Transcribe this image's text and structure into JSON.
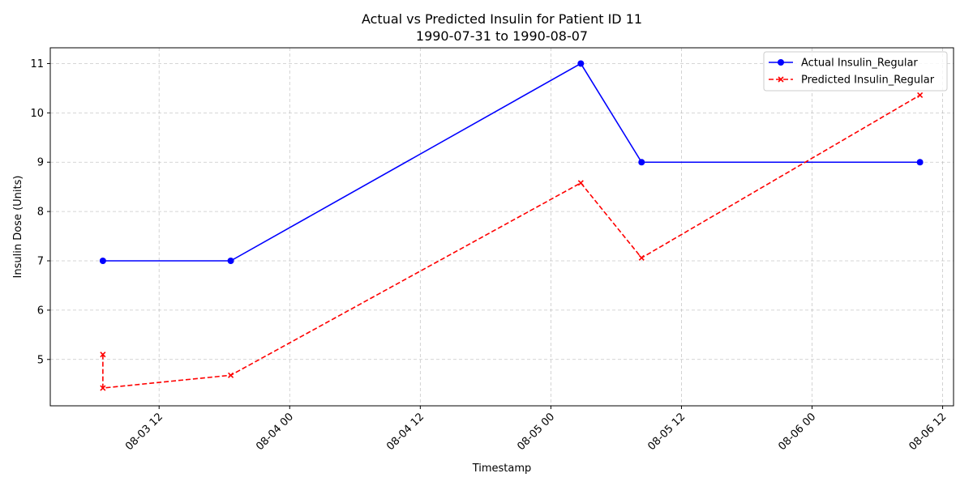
{
  "chart_data": {
    "type": "line",
    "title": "Actual vs Predicted Insulin for Patient ID 11",
    "subtitle": "1990-07-31 to 1990-08-07",
    "xlabel": "Timestamp",
    "ylabel": "Insulin Dose (Units)",
    "xlim": [
      "1990-08-03 02:00",
      "1990-08-06 13:00"
    ],
    "ylim": [
      4.06,
      11.32
    ],
    "x_ticks": [
      {
        "value": "1990-08-03 12:00",
        "label": "08-03 12"
      },
      {
        "value": "1990-08-04 00:00",
        "label": "08-04 00"
      },
      {
        "value": "1990-08-04 12:00",
        "label": "08-04 12"
      },
      {
        "value": "1990-08-05 00:00",
        "label": "08-05 00"
      },
      {
        "value": "1990-08-05 12:00",
        "label": "08-05 12"
      },
      {
        "value": "1990-08-06 00:00",
        "label": "08-06 00"
      },
      {
        "value": "1990-08-06 12:00",
        "label": "08-06 12"
      }
    ],
    "y_ticks": [
      5,
      6,
      7,
      8,
      9,
      10,
      11
    ],
    "grid": true,
    "legend_position": "top-right",
    "series": [
      {
        "name": "Actual Insulin_Regular",
        "color": "#0000ff",
        "line_style": "solid",
        "marker": "circle",
        "points": [
          {
            "x": "1990-08-03 06:50",
            "y": 7
          },
          {
            "x": "1990-08-03 18:35",
            "y": 7
          },
          {
            "x": "1990-08-05 02:45",
            "y": 11
          },
          {
            "x": "1990-08-05 08:20",
            "y": 9
          },
          {
            "x": "1990-08-06 09:55",
            "y": 9
          }
        ]
      },
      {
        "name": "Predicted Insulin_Regular",
        "color": "#ff0000",
        "line_style": "dashed",
        "marker": "x",
        "points": [
          {
            "x": "1990-08-03 06:50",
            "y": 5.1
          },
          {
            "x": "1990-08-03 06:50",
            "y": 4.42
          },
          {
            "x": "1990-08-03 18:35",
            "y": 4.68
          },
          {
            "x": "1990-08-05 02:45",
            "y": 8.58
          },
          {
            "x": "1990-08-05 08:20",
            "y": 7.06
          },
          {
            "x": "1990-08-06 09:55",
            "y": 10.36
          }
        ]
      }
    ]
  }
}
